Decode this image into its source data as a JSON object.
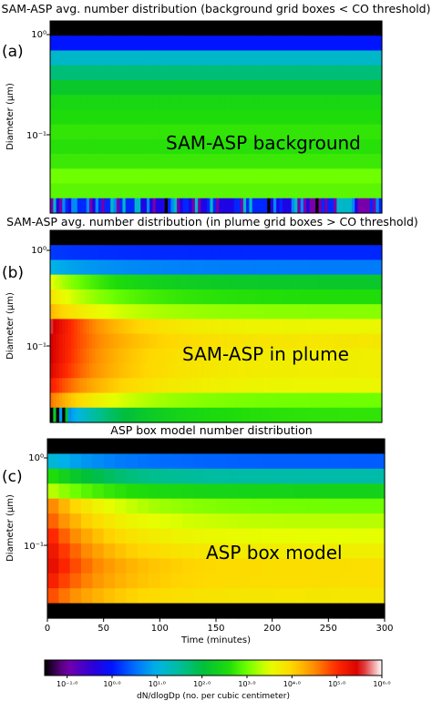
{
  "chart_data": [
    {
      "type": "heatmap",
      "panel_label": "(a)",
      "title": "SAM-ASP avg. number distribution (background grid boxes < CO threshold)",
      "annotation": "SAM-ASP background",
      "ylabel": "Diameter (μm)",
      "y_scale": "log",
      "y_ticks": [
        "10⁰",
        "10⁻¹"
      ],
      "x_ticks_visible": false,
      "xlim": [
        0,
        300
      ],
      "rows_log10_dNdlogDp_top_to_bottom": [
        -2.0,
        0.0,
        1.2,
        1.7,
        2.2,
        2.5,
        2.6,
        2.7,
        2.65,
        2.75,
        3.0,
        2.9,
        0.3
      ],
      "bottom_row_note": "mixed purple / blue / cyan / grey speckle (about -1 to 0.5)"
    },
    {
      "type": "heatmap",
      "panel_label": "(b)",
      "title": "SAM-ASP avg. number distribution (in plume grid boxes > CO threshold)",
      "annotation": "SAM-ASP in plume",
      "ylabel": "Diameter (μm)",
      "y_scale": "log",
      "y_ticks": [
        "10⁰",
        "10⁻¹"
      ],
      "x_ticks_visible": false,
      "xlim": [
        0,
        300
      ],
      "rows_log10_dNdlogDp_top_to_bottom": [
        {
          "start": -2.0,
          "end": -2.0
        },
        {
          "start": 0.2,
          "end": 0.1
        },
        {
          "start": 1.0,
          "end": 0.6
        },
        {
          "start": 3.5,
          "end": 2.2
        },
        {
          "start": 3.8,
          "end": 2.6
        },
        {
          "start": 4.2,
          "end": 3.1
        },
        {
          "start": 5.6,
          "end": 3.6
        },
        {
          "start": 5.5,
          "end": 3.8
        },
        {
          "start": 5.5,
          "end": 3.7
        },
        {
          "start": 5.4,
          "end": 3.7
        },
        {
          "start": 5.1,
          "end": 3.6
        },
        {
          "start": 4.6,
          "end": 3.0
        },
        {
          "start": 0.0,
          "end": 2.7
        }
      ]
    },
    {
      "type": "heatmap",
      "panel_label": "(c)",
      "title": "ASP box model number distribution",
      "annotation": "ASP box model",
      "xlabel": "Time (minutes)",
      "ylabel": "Diameter (μm)",
      "y_scale": "log",
      "y_ticks": [
        "10⁰",
        "10⁻¹"
      ],
      "x_ticks": [
        0,
        50,
        100,
        150,
        200,
        250,
        300
      ],
      "xlim": [
        0,
        300
      ],
      "rows_log10_dNdlogDp_top_to_bottom": [
        {
          "start": -2.0,
          "end": -2.0
        },
        {
          "start": 1.1,
          "end": 0.4
        },
        {
          "start": 2.6,
          "end": 1.4
        },
        {
          "start": 3.3,
          "end": 2.4
        },
        {
          "start": 4.5,
          "end": 3.0
        },
        {
          "start": 4.7,
          "end": 3.3
        },
        {
          "start": 5.0,
          "end": 3.5
        },
        {
          "start": 5.2,
          "end": 3.7
        },
        {
          "start": 5.3,
          "end": 3.9
        },
        {
          "start": 5.1,
          "end": 3.9
        },
        {
          "start": 4.8,
          "end": 3.8
        },
        {
          "start": -2.0,
          "end": -2.0
        }
      ]
    }
  ],
  "colorbar": {
    "label": "dN/dlogDp (no. per cubic centimeter)",
    "tick_labels": [
      "10⁻¹·⁰",
      "10⁰·⁰",
      "10¹·⁰",
      "10²·⁰",
      "10³·⁰",
      "10⁴·⁰",
      "10⁵·⁰",
      "10⁶·⁰"
    ],
    "tick_values_log10": [
      -1,
      0,
      1,
      2,
      3,
      4,
      5,
      6
    ],
    "range_log10": [
      -1.5,
      6
    ]
  }
}
